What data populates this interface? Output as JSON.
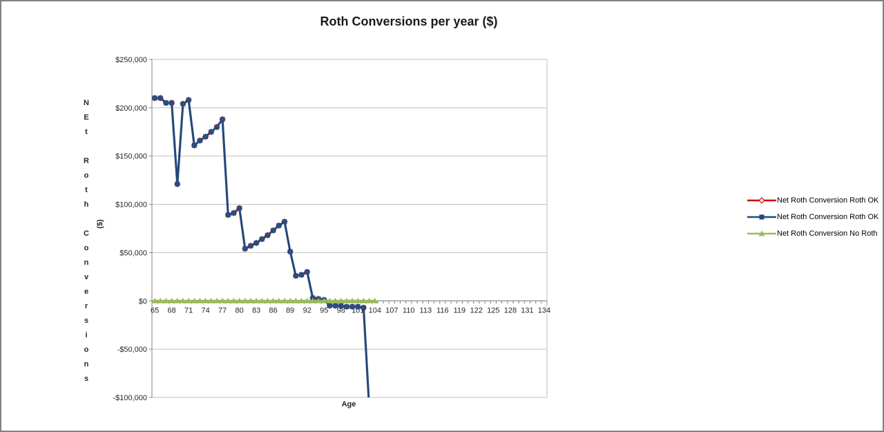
{
  "window": {
    "background": "#FFFFFF",
    "border_color": "#808080"
  },
  "chart_data": {
    "type": "line",
    "title": "Roth Conversions per year ($)",
    "xlabel": "Age",
    "ylabel": "NEt Roth Conversions",
    "ylabel_unit": "($)",
    "grid": "horizontal",
    "legend_position": "right",
    "ylim": [
      -100000,
      250000
    ],
    "y_tick_step": 50000,
    "y_tick_labels": [
      "-$100,000",
      "-$50,000",
      "$0",
      "$50,000",
      "$100,000",
      "$150,000",
      "$200,000",
      "$250,000"
    ],
    "x_label_step": 3,
    "x_tick_labels": [
      "65",
      "68",
      "71",
      "74",
      "77",
      "80",
      "83",
      "86",
      "89",
      "92",
      "95",
      "98",
      "101",
      "104",
      "107",
      "110",
      "113",
      "116",
      "119",
      "122",
      "125",
      "128",
      "131",
      "134"
    ],
    "x_categories": [
      65,
      66,
      67,
      68,
      69,
      70,
      71,
      72,
      73,
      74,
      75,
      76,
      77,
      78,
      79,
      80,
      81,
      82,
      83,
      84,
      85,
      86,
      87,
      88,
      89,
      90,
      91,
      92,
      93,
      94,
      95,
      96,
      97,
      98,
      99,
      100,
      101,
      102,
      103,
      104,
      105,
      106,
      107,
      108,
      109,
      110,
      111,
      112,
      113,
      114,
      115,
      116,
      117,
      118,
      119,
      120,
      121,
      122,
      123,
      124,
      125,
      126,
      127,
      128,
      129,
      130,
      131,
      132,
      133,
      134
    ],
    "colors": {
      "red_series": "#CC0000",
      "blue_series": "#1F497D",
      "green_series": "#9BBB59",
      "gridline": "#BFBFBF",
      "axis": "#808080",
      "tick_text": "#262626"
    },
    "series": [
      {
        "name": "Net Roth Conversion Roth OK",
        "key": "red",
        "color": "#CC0000",
        "marker": "diamond",
        "marker_fill": "#E8DCEC",
        "line_width": 2,
        "hidden_behind": "blue",
        "values": [
          210000,
          210000,
          205000,
          205000,
          121000,
          204000,
          208000,
          161000,
          166000,
          170000,
          175000,
          180000,
          188000,
          89000,
          91000,
          96000,
          54000,
          57000,
          60000,
          64000,
          68000,
          73000,
          78000,
          82000,
          51000,
          26000,
          27000,
          30000,
          3000,
          2000,
          1000,
          -5000,
          -5000,
          -5000,
          -6000,
          -6000,
          -6000,
          -7000,
          -110000,
          null,
          null,
          null,
          null,
          null,
          null,
          null,
          null,
          null,
          null,
          null,
          null,
          null,
          null,
          null,
          null,
          null,
          null,
          null,
          null,
          null,
          null,
          null,
          null,
          null,
          null,
          null,
          null,
          null,
          null,
          null
        ]
      },
      {
        "name": "Net Roth Conversion Roth OK",
        "key": "blue",
        "color": "#1F497D",
        "marker": "square",
        "marker_fill": "#1F497D",
        "line_width": 3.2,
        "values": [
          210000,
          210000,
          205000,
          205000,
          121000,
          204000,
          208000,
          161000,
          166000,
          170000,
          175000,
          180000,
          188000,
          89000,
          91000,
          96000,
          54000,
          57000,
          60000,
          64000,
          68000,
          73000,
          78000,
          82000,
          51000,
          26000,
          27000,
          30000,
          3000,
          2000,
          1000,
          -5000,
          -5000,
          -5000,
          -6000,
          -6000,
          -6000,
          -7000,
          -110000,
          null,
          null,
          null,
          null,
          null,
          null,
          null,
          null,
          null,
          null,
          null,
          null,
          null,
          null,
          null,
          null,
          null,
          null,
          null,
          null,
          null,
          null,
          null,
          null,
          null,
          null,
          null,
          null,
          null,
          null,
          null
        ]
      },
      {
        "name": "Net Roth Conversion No Roth",
        "key": "green",
        "color": "#9BBB59",
        "marker": "triangle",
        "marker_fill": "#9BBB59",
        "line_width": 3,
        "values": [
          0,
          0,
          0,
          0,
          0,
          0,
          0,
          0,
          0,
          0,
          0,
          0,
          0,
          0,
          0,
          0,
          0,
          0,
          0,
          0,
          0,
          0,
          0,
          0,
          0,
          0,
          0,
          0,
          0,
          0,
          0,
          0,
          0,
          0,
          0,
          0,
          0,
          0,
          0,
          0,
          null,
          null,
          null,
          null,
          null,
          null,
          null,
          null,
          null,
          null,
          null,
          null,
          null,
          null,
          null,
          null,
          null,
          null,
          null,
          null,
          null,
          null,
          null,
          null,
          null,
          null,
          null,
          null,
          null,
          null
        ]
      }
    ]
  }
}
